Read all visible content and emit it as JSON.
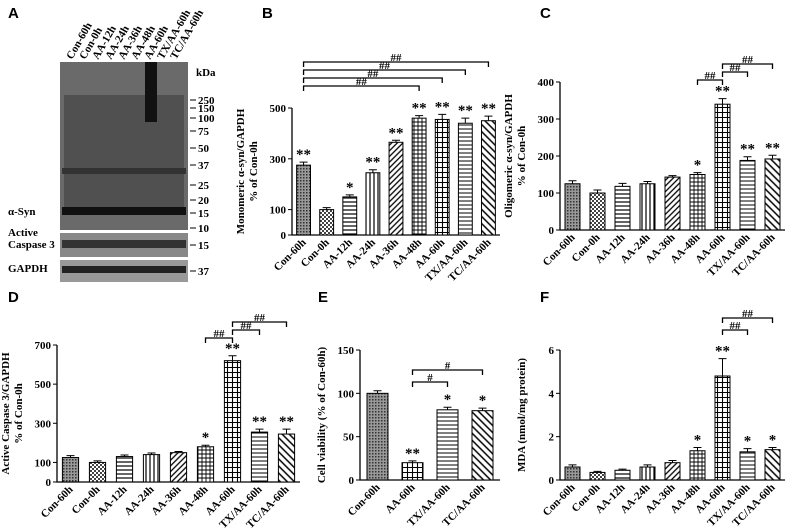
{
  "blot": {
    "label": "A",
    "lanes": [
      "Con-60h",
      "Con-0h",
      "AA-12h",
      "AA-24h",
      "AA-36h",
      "AA-48h",
      "AA-60h",
      "TX/AA-60h",
      "TC/AA-60h"
    ],
    "unit": "kDa",
    "markers": [
      250,
      150,
      100,
      75,
      50,
      37,
      25,
      20,
      15,
      10
    ],
    "rows": [
      {
        "name": [
          "α-Syn"
        ],
        "marker": 15
      },
      {
        "name": [
          "Active",
          "Caspase 3"
        ],
        "marker": 15
      },
      {
        "name": [
          "GAPDH"
        ],
        "marker": 37
      }
    ]
  },
  "chart_data": [
    {
      "type": "bar",
      "panel": "B",
      "ylabel": [
        "Monomeric α-syn/GAPDH",
        "% of Con-0h"
      ],
      "categories": [
        "Con-60h",
        "Con-0h",
        "AA-12h",
        "AA-24h",
        "AA-36h",
        "AA-48h",
        "AA-60h",
        "TX/AA-60h",
        "TC/AA-60h"
      ],
      "values": [
        275,
        100,
        150,
        245,
        365,
        460,
        455,
        440,
        450
      ],
      "errors": [
        12,
        8,
        8,
        12,
        8,
        10,
        20,
        20,
        18
      ],
      "sig": [
        "**",
        null,
        "*",
        "**",
        "**",
        "**",
        "**",
        "**",
        "**"
      ],
      "brackets": [
        {
          "from": 0,
          "to": 8,
          "label": "##"
        },
        {
          "from": 0,
          "to": 7,
          "label": "##"
        },
        {
          "from": 0,
          "to": 6,
          "label": "##"
        },
        {
          "from": 0,
          "to": 5,
          "label": "##"
        }
      ],
      "ylim": [
        0,
        500
      ],
      "yticks": [
        0,
        100,
        300,
        500
      ]
    },
    {
      "type": "bar",
      "panel": "C",
      "ylabel": [
        "Oligomeric α-syn/GAPDH",
        "% of Con-0h"
      ],
      "categories": [
        "Con-60h",
        "Con-0h",
        "AA-12h",
        "AA-24h",
        "AA-36h",
        "AA-48h",
        "AA-60h",
        "TX/AA-60h",
        "TC/AA-60h"
      ],
      "values": [
        125,
        100,
        118,
        125,
        143,
        150,
        340,
        188,
        192
      ],
      "errors": [
        8,
        8,
        8,
        6,
        4,
        5,
        15,
        10,
        10
      ],
      "sig": [
        null,
        null,
        null,
        null,
        null,
        "*",
        "**",
        "**",
        "**"
      ],
      "brackets": [
        {
          "from": 6,
          "to": 8,
          "label": "##"
        },
        {
          "from": 6,
          "to": 7,
          "label": "##"
        },
        {
          "from": 5,
          "to": 6,
          "label": "##"
        }
      ],
      "ylim": [
        0,
        400
      ],
      "yticks": [
        0,
        100,
        200,
        300,
        400
      ]
    },
    {
      "type": "bar",
      "panel": "D",
      "ylabel": [
        "Active Caspase 3/GAPDH",
        "% of Con-0h"
      ],
      "categories": [
        "Con-60h",
        "Con-0h",
        "AA-12h",
        "AA-24h",
        "AA-36h",
        "AA-48h",
        "AA-60h",
        "TX/AA-60h",
        "TC/AA-60h"
      ],
      "values": [
        125,
        100,
        130,
        140,
        150,
        180,
        620,
        255,
        245
      ],
      "errors": [
        10,
        8,
        8,
        8,
        6,
        8,
        25,
        15,
        25
      ],
      "sig": [
        null,
        null,
        null,
        null,
        null,
        "*",
        "**",
        "**",
        "**"
      ],
      "brackets": [
        {
          "from": 6,
          "to": 8,
          "label": "##"
        },
        {
          "from": 6,
          "to": 7,
          "label": "##"
        },
        {
          "from": 5,
          "to": 6,
          "label": "##"
        }
      ],
      "ylim": [
        0,
        700
      ],
      "yticks": [
        0,
        100,
        300,
        500,
        700
      ]
    },
    {
      "type": "bar",
      "panel": "E",
      "ylabel": [
        "Cell viability (% of Con-60h)"
      ],
      "categories": [
        "Con-60h",
        "AA-60h",
        "TX/AA-60h",
        "TC/AA-60h"
      ],
      "values": [
        100,
        20,
        81,
        80
      ],
      "errors": [
        3,
        2,
        3,
        3
      ],
      "sig": [
        null,
        "**",
        "*",
        "*"
      ],
      "brackets": [
        {
          "from": 1,
          "to": 3,
          "label": "#"
        },
        {
          "from": 1,
          "to": 2,
          "label": "#"
        }
      ],
      "ylim": [
        0,
        150
      ],
      "yticks": [
        0,
        50,
        100,
        150
      ]
    },
    {
      "type": "bar",
      "panel": "F",
      "ylabel": [
        "MDA (nmol/mg protein)"
      ],
      "categories": [
        "Con-60h",
        "Con-0h",
        "AA-12h",
        "AA-24h",
        "AA-36h",
        "AA-48h",
        "AA-60h",
        "TX/AA-60h",
        "TC/AA-60h"
      ],
      "values": [
        0.6,
        0.35,
        0.45,
        0.6,
        0.8,
        1.35,
        4.8,
        1.3,
        1.4
      ],
      "errors": [
        0.1,
        0.05,
        0.05,
        0.1,
        0.1,
        0.15,
        0.8,
        0.15,
        0.1
      ],
      "sig": [
        null,
        null,
        null,
        null,
        null,
        "*",
        "**",
        "*",
        "*"
      ],
      "brackets": [
        {
          "from": 6,
          "to": 8,
          "label": "##"
        },
        {
          "from": 6,
          "to": 7,
          "label": "##"
        }
      ],
      "ylim": [
        0,
        6
      ],
      "yticks": [
        0,
        2,
        4,
        6
      ]
    }
  ]
}
